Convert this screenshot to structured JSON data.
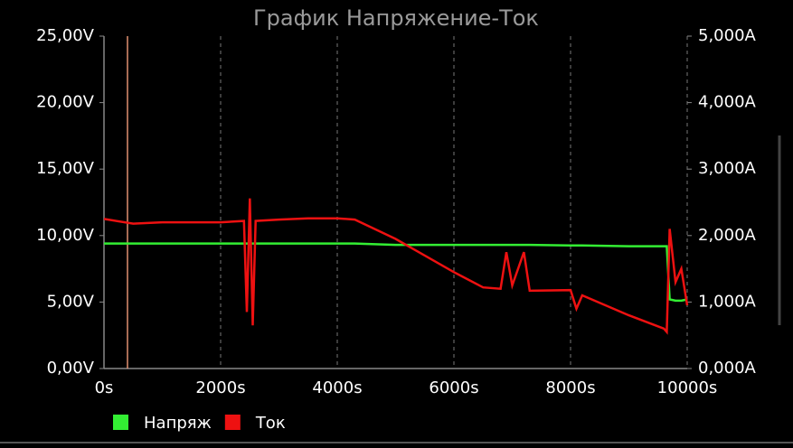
{
  "chart_data": {
    "type": "line",
    "title": "График Напряжение-Ток",
    "x": [
      0,
      500,
      1000,
      1500,
      2000,
      2400,
      2450,
      2500,
      2550,
      2600,
      3000,
      3500,
      4000,
      4300,
      5000,
      5500,
      6000,
      6500,
      6800,
      6900,
      7000,
      7200,
      7300,
      8000,
      8100,
      8200,
      9000,
      9600,
      9650,
      9700,
      9800,
      9900,
      10000
    ],
    "series": [
      {
        "name": "Напряж",
        "color": "#33ee33",
        "values": [
          9.4,
          9.4,
          9.4,
          9.4,
          9.4,
          9.4,
          9.4,
          9.4,
          9.4,
          9.4,
          9.4,
          9.4,
          9.4,
          9.4,
          9.3,
          9.3,
          9.3,
          9.3,
          9.3,
          9.3,
          9.3,
          9.3,
          9.3,
          9.25,
          9.25,
          9.25,
          9.2,
          9.2,
          9.2,
          5.2,
          5.1,
          5.1,
          5.2
        ]
      },
      {
        "name": "Ток",
        "color": "#ee1111",
        "axis": "y2",
        "values": [
          2.25,
          2.18,
          2.2,
          2.2,
          2.2,
          2.22,
          0.85,
          2.56,
          0.65,
          2.22,
          2.24,
          2.26,
          2.26,
          2.24,
          1.95,
          1.7,
          1.45,
          1.22,
          1.2,
          1.75,
          1.25,
          1.75,
          1.17,
          1.18,
          0.9,
          1.1,
          0.8,
          0.6,
          0.55,
          2.1,
          1.3,
          1.5,
          0.95
        ]
      }
    ],
    "xlim": [
      0,
      10000
    ],
    "xticks": [
      {
        "value": 0,
        "label": "0s"
      },
      {
        "value": 2000,
        "label": "2000s"
      },
      {
        "value": 4000,
        "label": "4000s"
      },
      {
        "value": 6000,
        "label": "6000s"
      },
      {
        "value": 8000,
        "label": "8000s"
      },
      {
        "value": 10000,
        "label": "10000s"
      }
    ],
    "ylim": [
      0,
      25
    ],
    "yticks": [
      {
        "value": 0,
        "label": "0,00V"
      },
      {
        "value": 5,
        "label": "5,00V"
      },
      {
        "value": 10,
        "label": "10,00V"
      },
      {
        "value": 15,
        "label": "15,00V"
      },
      {
        "value": 20,
        "label": "20,00V"
      },
      {
        "value": 25,
        "label": "25,00V"
      }
    ],
    "y2lim": [
      0,
      5
    ],
    "y2ticks": [
      {
        "value": 0,
        "label": "0,000A"
      },
      {
        "value": 1,
        "label": "1,000A"
      },
      {
        "value": 2,
        "label": "2,000A"
      },
      {
        "value": 3,
        "label": "3,000A"
      },
      {
        "value": 4,
        "label": "4,000A"
      },
      {
        "value": 5,
        "label": "5,000A"
      }
    ],
    "grid": true
  }
}
